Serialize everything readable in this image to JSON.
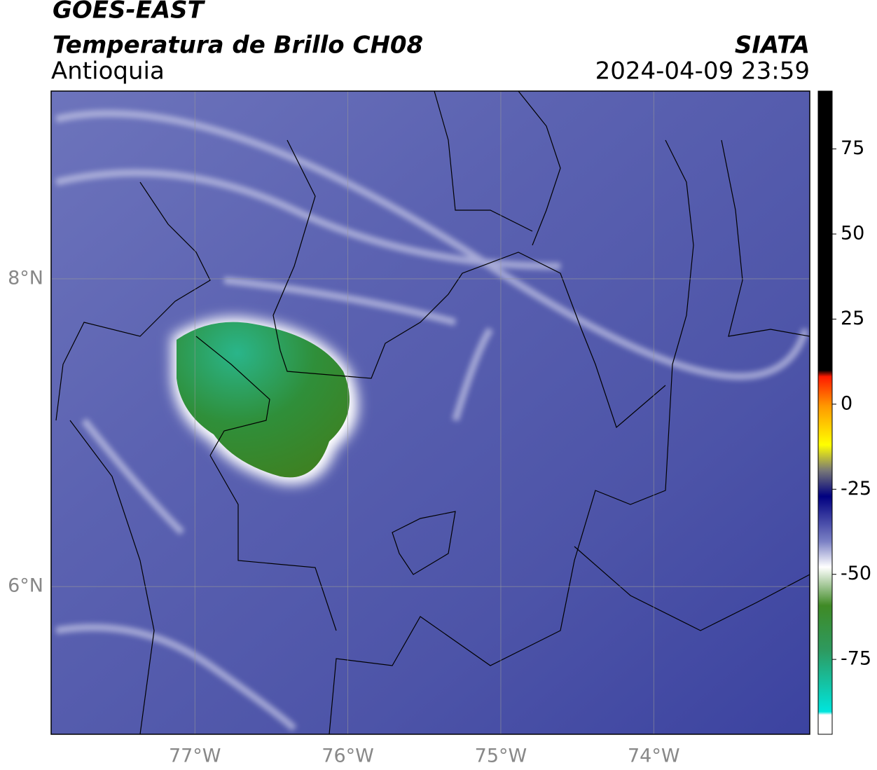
{
  "header": {
    "title": "GOES-EAST",
    "subtitle": "Temperatura de Brillo CH08",
    "region": "Antioquia",
    "source": "SIATA",
    "datetime": "2024-04-09 23:59"
  },
  "map": {
    "xlim": [
      -77.94,
      -72.98
    ],
    "ylim": [
      5.04,
      9.22
    ],
    "lon_ticks": [
      {
        "value": -77,
        "label": "77°W"
      },
      {
        "value": -76,
        "label": "76°W"
      },
      {
        "value": -75,
        "label": "75°W"
      },
      {
        "value": -74,
        "label": "74°W"
      }
    ],
    "lat_ticks": [
      {
        "value": 8,
        "label": "8°N"
      },
      {
        "value": 6,
        "label": "6°N"
      }
    ]
  },
  "colorbar": {
    "lim": [
      -97,
      92
    ],
    "ticks": [
      75,
      50,
      25,
      0,
      -25,
      -50,
      -75
    ]
  }
}
